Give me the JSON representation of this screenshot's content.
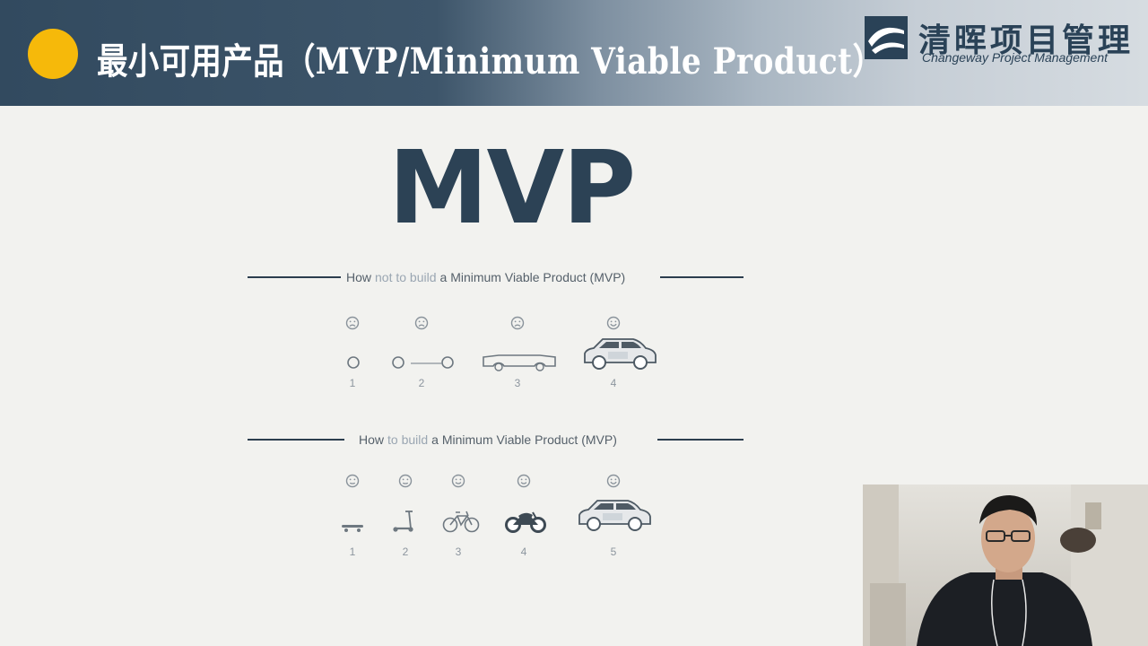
{
  "header": {
    "title": "最小可用产品（MVP/Minimum Viable Product）",
    "accent_color": "#f6b90a",
    "brand_name": "清晖项目管理",
    "brand_subtitle": "Changeway Project Management",
    "brand_logo_icon": "changeway-logo-icon"
  },
  "slide": {
    "title": "MVP",
    "wrong_row": {
      "heading_prefix": "How",
      "heading_highlight": "not to build",
      "heading_suffix": "a Minimum Viable Product (MVP)",
      "steps": [
        {
          "label": "1",
          "icon": "wheel-icon",
          "face": "sad-face-icon"
        },
        {
          "label": "2",
          "icon": "axle-icon",
          "face": "sad-face-icon"
        },
        {
          "label": "3",
          "icon": "car-body-icon",
          "face": "sad-face-icon"
        },
        {
          "label": "4",
          "icon": "car-icon",
          "face": "happy-face-icon"
        }
      ]
    },
    "right_row": {
      "heading_prefix": "How",
      "heading_highlight": "to build",
      "heading_suffix": "a Minimum Viable Product (MVP)",
      "steps": [
        {
          "label": "1",
          "icon": "skateboard-icon",
          "face": "neutral-face-icon"
        },
        {
          "label": "2",
          "icon": "scooter-icon",
          "face": "neutral-face-icon"
        },
        {
          "label": "3",
          "icon": "bicycle-icon",
          "face": "smile-face-icon"
        },
        {
          "label": "4",
          "icon": "motorcycle-icon",
          "face": "smile-face-icon"
        },
        {
          "label": "5",
          "icon": "car-icon",
          "face": "happy-face-icon"
        }
      ]
    }
  },
  "webcam": {
    "icon": "presenter-video-feed"
  }
}
